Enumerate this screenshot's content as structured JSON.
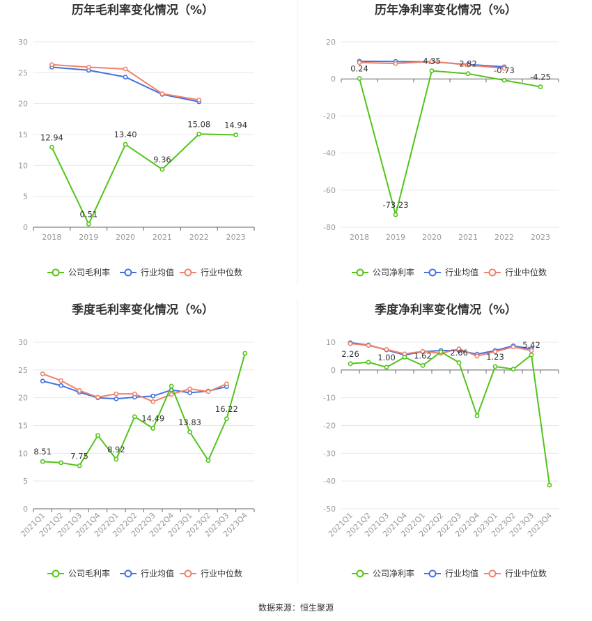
{
  "footer": {
    "source": "数据来源：恒生聚源"
  },
  "colors": {
    "company": "#52c41a",
    "avg": "#4472e0",
    "median": "#f0826a"
  },
  "chart_data": [
    {
      "type": "line",
      "title": "历年毛利率变化情况（%）",
      "categories": [
        "2018",
        "2019",
        "2020",
        "2021",
        "2022",
        "2023"
      ],
      "ylim": [
        0,
        30
      ],
      "yticks": [
        0,
        5,
        10,
        15,
        20,
        25,
        30
      ],
      "legend": "bottom",
      "series": [
        {
          "name": "公司毛利率",
          "color": "#52c41a",
          "values": [
            12.94,
            0.51,
            13.4,
            9.36,
            15.08,
            14.94
          ],
          "labels": [
            "12.94",
            "0.51",
            "13.40",
            "9.36",
            "15.08",
            "14.94"
          ]
        },
        {
          "name": "行业均值",
          "color": "#4472e0",
          "values": [
            25.9,
            25.4,
            24.3,
            21.5,
            20.3,
            null
          ]
        },
        {
          "name": "行业中位数",
          "color": "#f0826a",
          "values": [
            26.3,
            25.9,
            25.6,
            21.6,
            20.6,
            null
          ]
        }
      ]
    },
    {
      "type": "line",
      "title": "历年净利率变化情况（%）",
      "categories": [
        "2018",
        "2019",
        "2020",
        "2021",
        "2022",
        "2023"
      ],
      "ylim": [
        -80,
        20
      ],
      "yticks": [
        -80,
        -60,
        -40,
        -20,
        0,
        20
      ],
      "legend": "bottom",
      "series": [
        {
          "name": "公司净利率",
          "color": "#52c41a",
          "values": [
            0.24,
            -73.23,
            4.35,
            2.82,
            -0.73,
            -4.25
          ],
          "labels": [
            "0.24",
            "-73.23",
            "4.35",
            "2.82",
            "-0.73",
            "-4.25"
          ]
        },
        {
          "name": "行业均值",
          "color": "#4472e0",
          "values": [
            9.5,
            9.4,
            9.2,
            7.8,
            6.5,
            null
          ]
        },
        {
          "name": "行业中位数",
          "color": "#f0826a",
          "values": [
            8.8,
            8.3,
            9.4,
            7.5,
            5.7,
            null
          ]
        }
      ]
    },
    {
      "type": "line",
      "title": "季度毛利率变化情况（%）",
      "categories": [
        "2021Q1",
        "2021Q2",
        "2021Q3",
        "2021Q4",
        "2022Q1",
        "2022Q2",
        "2022Q3",
        "2022Q4",
        "2023Q1",
        "2023Q2",
        "2023Q3",
        "2023Q4"
      ],
      "ylim": [
        0,
        30
      ],
      "yticks": [
        0,
        5,
        10,
        15,
        20,
        25,
        30
      ],
      "rotate_x_labels": true,
      "legend": "bottom",
      "series": [
        {
          "name": "公司毛利率",
          "color": "#52c41a",
          "values": [
            8.51,
            8.3,
            7.75,
            13.2,
            8.92,
            16.6,
            14.49,
            22.1,
            13.83,
            8.7,
            16.22,
            28.0
          ],
          "labels": [
            "8.51",
            "",
            "7.75",
            "",
            "8.92",
            "",
            "14.49",
            "",
            "13.83",
            "",
            "16.22",
            ""
          ]
        },
        {
          "name": "行业均值",
          "color": "#4472e0",
          "values": [
            23.0,
            22.2,
            21.0,
            20.0,
            19.8,
            20.1,
            20.3,
            21.4,
            20.9,
            21.2,
            22.0,
            null
          ]
        },
        {
          "name": "行业中位数",
          "color": "#f0826a",
          "values": [
            24.3,
            23.1,
            21.3,
            20.1,
            20.7,
            20.7,
            19.3,
            20.6,
            21.6,
            21.1,
            22.5,
            null
          ]
        }
      ]
    },
    {
      "type": "line",
      "title": "季度净利率变化情况（%）",
      "categories": [
        "2021Q1",
        "2021Q2",
        "2021Q3",
        "2021Q4",
        "2022Q1",
        "2022Q2",
        "2022Q3",
        "2022Q4",
        "2023Q1",
        "2023Q2",
        "2023Q3",
        "2023Q4"
      ],
      "ylim": [
        -50,
        10
      ],
      "yticks": [
        -50,
        -40,
        -30,
        -20,
        -10,
        0,
        10
      ],
      "rotate_x_labels": true,
      "legend": "bottom",
      "series": [
        {
          "name": "公司净利率",
          "color": "#52c41a",
          "values": [
            2.26,
            2.8,
            1.0,
            4.6,
            1.62,
            6.5,
            2.66,
            -16.5,
            1.23,
            0.3,
            5.42,
            -41.5
          ],
          "labels": [
            "2.26",
            "",
            "1.00",
            "",
            "1.62",
            "",
            "2.66",
            "",
            "1.23",
            "",
            "5.42",
            ""
          ]
        },
        {
          "name": "行业均值",
          "color": "#4472e0",
          "values": [
            9.8,
            9.0,
            7.2,
            5.4,
            6.6,
            7.0,
            7.0,
            5.7,
            7.0,
            8.7,
            7.6,
            null
          ]
        },
        {
          "name": "行业中位数",
          "color": "#f0826a",
          "values": [
            9.5,
            8.8,
            7.4,
            5.8,
            6.7,
            6.0,
            7.6,
            5.0,
            6.6,
            8.3,
            7.0,
            null
          ]
        }
      ]
    }
  ]
}
